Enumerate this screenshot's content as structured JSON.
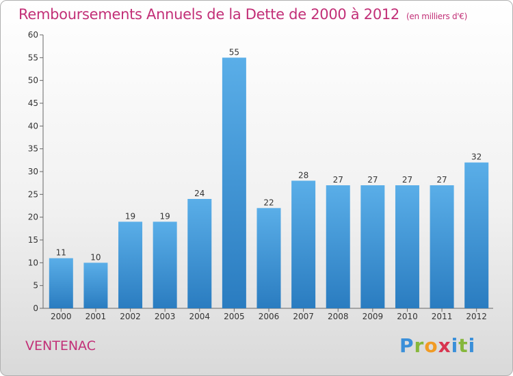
{
  "header": {
    "title": "Remboursements Annuels de la Dette de 2000 à 2012",
    "subtitle": "(en milliers d'€)"
  },
  "footer": {
    "commune": "VENTENAC",
    "logo_text": "Proxiti"
  },
  "colors": {
    "title": "#c22f77",
    "bar_top": "#5aaee8",
    "bar_bottom": "#2a7cc0",
    "axis": "#666666"
  },
  "chart_data": {
    "type": "bar",
    "title": "Remboursements Annuels de la Dette de 2000 à 2012",
    "subtitle": "(en milliers d'€)",
    "xlabel": "",
    "ylabel": "",
    "categories": [
      "2000",
      "2001",
      "2002",
      "2003",
      "2004",
      "2005",
      "2006",
      "2007",
      "2008",
      "2009",
      "2010",
      "2011",
      "2012"
    ],
    "values": [
      11,
      10,
      19,
      19,
      24,
      55,
      22,
      28,
      27,
      27,
      27,
      27,
      32
    ],
    "ylim": [
      0,
      60
    ],
    "yticks": [
      0,
      5,
      10,
      15,
      20,
      25,
      30,
      35,
      40,
      45,
      50,
      55,
      60
    ],
    "grid": false,
    "legend": "none"
  }
}
